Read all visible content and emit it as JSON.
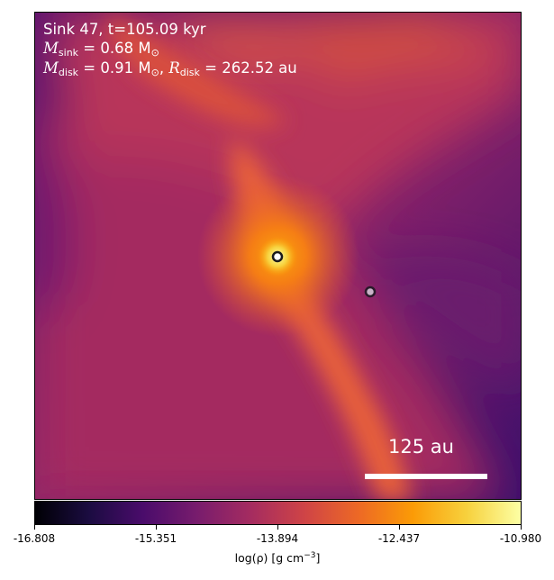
{
  "annotation": {
    "line1": "Sink 47, t=105.09 kyr",
    "msink_symbol": "M",
    "msink_sub": "sink",
    "msink_value": " = 0.68 M",
    "msink_unit_sub": "⊙",
    "mdisk_symbol": "M",
    "mdisk_sub": "disk",
    "mdisk_value": " = 0.91 M",
    "mdisk_unit_sub": "⊙",
    "rdisk_sep": ", ",
    "rdisk_symbol": "R",
    "rdisk_sub": "disk",
    "rdisk_value": " = 262.52 au"
  },
  "scale_bar": {
    "label": "125 au",
    "color": "#ffffff"
  },
  "colorbar": {
    "ticks": [
      "-16.808",
      "-15.351",
      "-13.894",
      "-12.437",
      "-10.980"
    ],
    "label_prefix": "log(ρ) [g cm",
    "label_sup": "−3",
    "label_suffix": "]",
    "colormap": "inferno"
  },
  "sinks": [
    {
      "name": "primary-sink",
      "fill": "#ffffff",
      "stroke": "#1a1a1a"
    },
    {
      "name": "secondary-sink",
      "fill": "#c9b3c8",
      "stroke": "#2a1a2a"
    }
  ]
}
